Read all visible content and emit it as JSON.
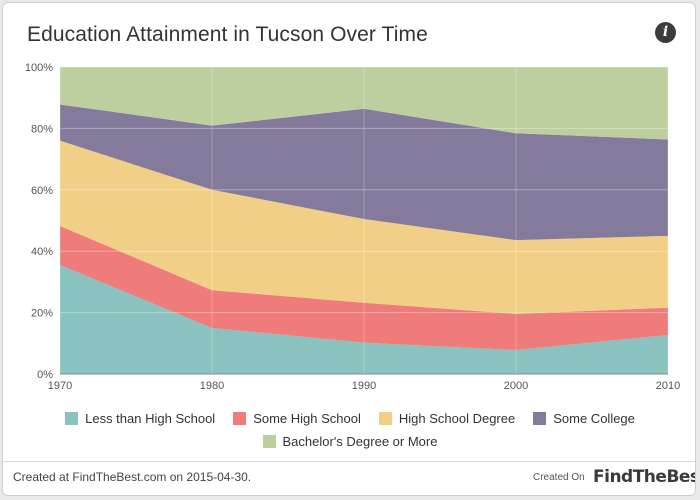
{
  "header": {
    "title": "Education Attainment in Tucson Over Time",
    "info_icon": "info-icon",
    "info_glyph": "i"
  },
  "footer": {
    "credit": "Created at FindTheBest.com on 2015-04-30.",
    "created_on": "Created On",
    "brand": "FindTheBest"
  },
  "chart_data": {
    "type": "area",
    "stacked": true,
    "title": "Education Attainment in Tucson Over Time",
    "xlabel": "",
    "ylabel": "",
    "x": [
      1970,
      1980,
      1990,
      2000,
      2010
    ],
    "x_tick_labels": [
      "1970",
      "1980",
      "1990",
      "2000",
      "2010"
    ],
    "y_tick_labels": [
      "0%",
      "20%",
      "40%",
      "60%",
      "80%",
      "100%"
    ],
    "ylim": [
      0,
      100
    ],
    "grid": true,
    "legend_position": "bottom",
    "series": [
      {
        "name": "Less than High School",
        "color": "#89c2be",
        "values": [
          35.5,
          15,
          10.2,
          7.8,
          12.7
        ]
      },
      {
        "name": "Some High School",
        "color": "#f07b7b",
        "values": [
          12.7,
          12.3,
          13,
          11.8,
          8.9
        ]
      },
      {
        "name": "High School Degree",
        "color": "#f2cf87",
        "values": [
          27.8,
          32.7,
          27.3,
          24,
          23.4
        ]
      },
      {
        "name": "Some College",
        "color": "#847a9c",
        "values": [
          11.8,
          20.9,
          35.9,
          34.8,
          31.4
        ]
      },
      {
        "name": "Bachelor's Degree or More",
        "color": "#bdcf9f",
        "values": [
          12.2,
          19.1,
          13.6,
          21.6,
          23.6
        ]
      }
    ]
  }
}
